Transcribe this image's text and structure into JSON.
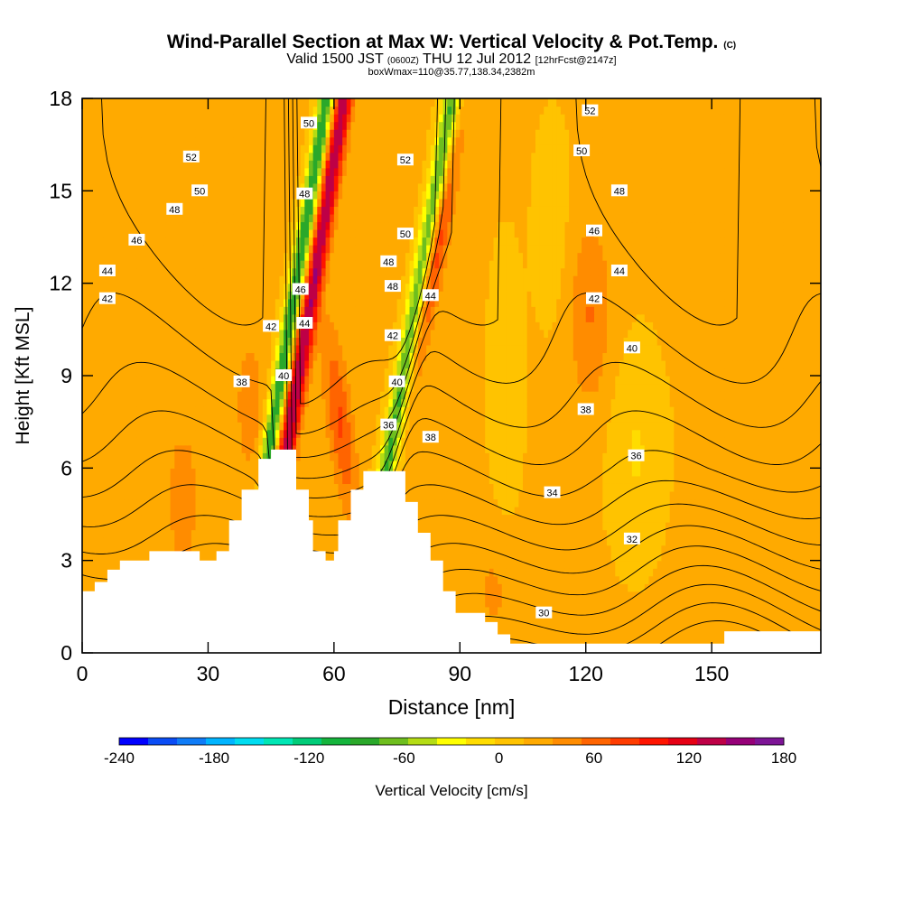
{
  "title": {
    "main": "Wind-Parallel Section at Max W: Vertical Velocity & Pot.Temp.",
    "main_tag": "(C)",
    "valid_prefix": "Valid 1500 JST",
    "valid_z": "(0600Z)",
    "valid_date": "THU 12 Jul 2012",
    "valid_fcst": "[12hrFcst@2147z]",
    "box_info": "boxWmax=110@35.77,138.34,2382m"
  },
  "chart_data": {
    "type": "heatmap",
    "xlabel": "Distance [nm]",
    "ylabel": "Height [Kft MSL]",
    "xlim": [
      0,
      176
    ],
    "ylim": [
      0,
      18
    ],
    "xticks": [
      0,
      30,
      60,
      90,
      120,
      150
    ],
    "yticks": [
      0,
      3,
      6,
      9,
      12,
      15,
      18
    ],
    "grid": false,
    "colorbar": {
      "label": "Vertical Velocity [cm/s]",
      "ticks": [
        -240,
        -180,
        -120,
        -60,
        0,
        60,
        120,
        180
      ],
      "min": -240,
      "max": 180,
      "colors": [
        "#0000ff",
        "#0a4cf5",
        "#0f7cf7",
        "#00b4ff",
        "#00dcf0",
        "#00e6b4",
        "#00cc78",
        "#14b43c",
        "#2aa82a",
        "#6ebe1e",
        "#b4dc14",
        "#ffff00",
        "#ffdc00",
        "#ffc300",
        "#ffaa00",
        "#ff8c00",
        "#ff6400",
        "#ff3c00",
        "#ff1400",
        "#e60014",
        "#be0046",
        "#960078",
        "#7d1496"
      ]
    },
    "theta_contours": [
      {
        "label": "30",
        "label_at": [
          110,
          1.3
        ]
      },
      {
        "label": "32",
        "label_at": [
          131,
          3.7
        ]
      },
      {
        "label": "34",
        "label_at": [
          112,
          5.2
        ]
      },
      {
        "label": "36",
        "label_at": [
          132,
          6.4
        ]
      },
      {
        "label": "36",
        "label_at": [
          73,
          7.4
        ]
      },
      {
        "label": "38",
        "label_at": [
          120,
          7.9
        ]
      },
      {
        "label": "38",
        "label_at": [
          38,
          8.8
        ]
      },
      {
        "label": "38",
        "label_at": [
          83,
          7.0
        ]
      },
      {
        "label": "40",
        "label_at": [
          131,
          9.9
        ]
      },
      {
        "label": "40",
        "label_at": [
          48,
          9.0
        ]
      },
      {
        "label": "40",
        "label_at": [
          75,
          8.8
        ]
      },
      {
        "label": "42",
        "label_at": [
          6,
          11.5
        ]
      },
      {
        "label": "42",
        "label_at": [
          122,
          11.5
        ]
      },
      {
        "label": "42",
        "label_at": [
          45,
          10.6
        ]
      },
      {
        "label": "42",
        "label_at": [
          74,
          10.3
        ]
      },
      {
        "label": "44",
        "label_at": [
          6,
          12.4
        ]
      },
      {
        "label": "44",
        "label_at": [
          128,
          12.4
        ]
      },
      {
        "label": "44",
        "label_at": [
          53,
          10.7
        ]
      },
      {
        "label": "44",
        "label_at": [
          83,
          11.6
        ]
      },
      {
        "label": "46",
        "label_at": [
          13,
          13.4
        ]
      },
      {
        "label": "46",
        "label_at": [
          122,
          13.7
        ]
      },
      {
        "label": "46",
        "label_at": [
          52,
          11.8
        ]
      },
      {
        "label": "48",
        "label_at": [
          22,
          14.4
        ]
      },
      {
        "label": "48",
        "label_at": [
          128,
          15.0
        ]
      },
      {
        "label": "48",
        "label_at": [
          53,
          14.9
        ]
      },
      {
        "label": "48",
        "label_at": [
          73,
          12.7
        ]
      },
      {
        "label": "48",
        "label_at": [
          74,
          11.9
        ]
      },
      {
        "label": "50",
        "label_at": [
          28,
          15.0
        ]
      },
      {
        "label": "50",
        "label_at": [
          119,
          16.3
        ]
      },
      {
        "label": "50",
        "label_at": [
          54,
          17.2
        ]
      },
      {
        "label": "50",
        "label_at": [
          77,
          13.6
        ]
      },
      {
        "label": "52",
        "label_at": [
          26,
          16.1
        ]
      },
      {
        "label": "52",
        "label_at": [
          121,
          17.6
        ]
      },
      {
        "label": "52",
        "label_at": [
          77,
          16.0
        ]
      }
    ],
    "terrain_kft": [
      [
        0,
        2.0
      ],
      [
        3,
        2.0
      ],
      [
        3,
        2.3
      ],
      [
        6,
        2.3
      ],
      [
        6,
        2.7
      ],
      [
        9,
        2.7
      ],
      [
        9,
        3.0
      ],
      [
        16,
        3.0
      ],
      [
        16,
        3.3
      ],
      [
        28,
        3.3
      ],
      [
        28,
        3.0
      ],
      [
        32,
        3.0
      ],
      [
        32,
        3.3
      ],
      [
        35,
        3.3
      ],
      [
        35,
        4.3
      ],
      [
        38,
        4.3
      ],
      [
        38,
        5.3
      ],
      [
        42,
        5.3
      ],
      [
        42,
        6.3
      ],
      [
        45,
        6.3
      ],
      [
        45,
        6.6
      ],
      [
        51,
        6.6
      ],
      [
        51,
        5.3
      ],
      [
        54,
        5.3
      ],
      [
        54,
        4.3
      ],
      [
        55,
        4.3
      ],
      [
        55,
        3.3
      ],
      [
        58,
        3.3
      ],
      [
        58,
        3.0
      ],
      [
        60,
        3.0
      ],
      [
        60,
        3.3
      ],
      [
        61,
        3.3
      ],
      [
        61,
        4.3
      ],
      [
        64,
        4.3
      ],
      [
        64,
        5.3
      ],
      [
        67,
        5.3
      ],
      [
        67,
        5.9
      ],
      [
        77,
        5.9
      ],
      [
        77,
        4.9
      ],
      [
        80,
        4.9
      ],
      [
        80,
        3.9
      ],
      [
        83,
        3.9
      ],
      [
        83,
        3.0
      ],
      [
        86,
        3.0
      ],
      [
        86,
        2.0
      ],
      [
        89,
        2.0
      ],
      [
        89,
        1.3
      ],
      [
        96,
        1.3
      ],
      [
        96,
        1.0
      ],
      [
        99,
        1.0
      ],
      [
        99,
        0.6
      ],
      [
        102,
        0.6
      ],
      [
        102,
        0.3
      ],
      [
        153,
        0.3
      ],
      [
        153,
        0.7
      ],
      [
        176,
        0.7
      ],
      [
        176,
        0
      ],
      [
        0,
        0
      ]
    ]
  }
}
